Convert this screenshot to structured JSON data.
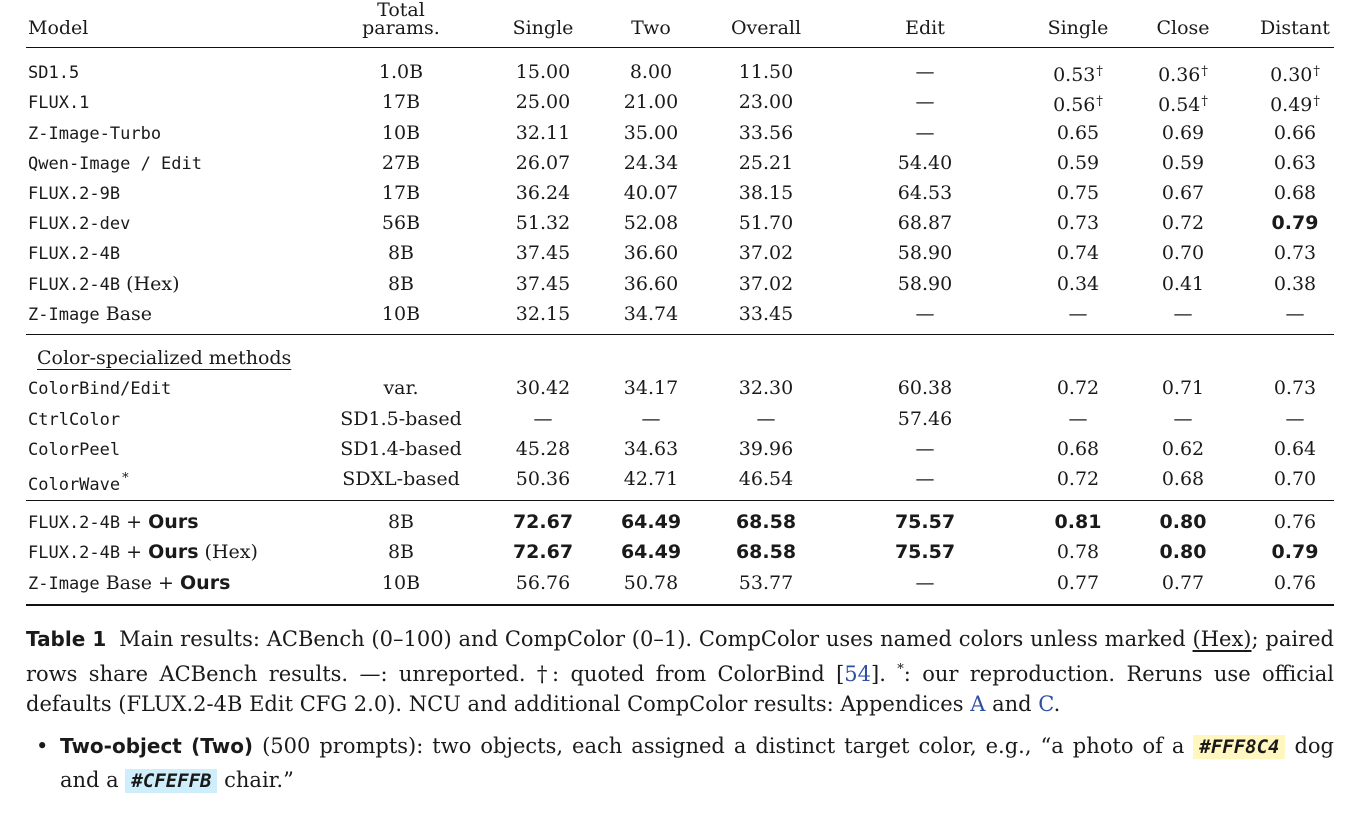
{
  "table": {
    "headers": {
      "model": "Model",
      "params_line1": "Total",
      "params_line2": "params.",
      "single": "Single",
      "two": "Two",
      "overall": "Overall",
      "edit": "Edit",
      "cc_single": "Single",
      "close": "Close",
      "distant": "Distant"
    },
    "group1": [
      {
        "name": "SD1.5",
        "params": "1.0B",
        "single": "15.00",
        "two": "8.00",
        "overall": "11.50",
        "edit": "—",
        "cc_single": "0.53",
        "close": "0.36",
        "distant": "0.30",
        "dagger": "†"
      },
      {
        "name": "FLUX.1",
        "params": "17B",
        "single": "25.00",
        "two": "21.00",
        "overall": "23.00",
        "edit": "—",
        "cc_single": "0.56",
        "close": "0.54",
        "distant": "0.49",
        "dagger": "†"
      },
      {
        "name": "Z-Image-Turbo",
        "params": "10B",
        "single": "32.11",
        "two": "35.00",
        "overall": "33.56",
        "edit": "—",
        "cc_single": "0.65",
        "close": "0.69",
        "distant": "0.66"
      },
      {
        "name": "Qwen-Image / Edit",
        "params": "27B",
        "single": "26.07",
        "two": "24.34",
        "overall": "25.21",
        "edit": "54.40",
        "cc_single": "0.59",
        "close": "0.59",
        "distant": "0.63"
      },
      {
        "name": "FLUX.2-9B",
        "params": "17B",
        "single": "36.24",
        "two": "40.07",
        "overall": "38.15",
        "edit": "64.53",
        "cc_single": "0.75",
        "close": "0.67",
        "distant": "0.68"
      },
      {
        "name": "FLUX.2-dev",
        "params": "56B",
        "single": "51.32",
        "two": "52.08",
        "overall": "51.70",
        "edit": "68.87",
        "cc_single": "0.73",
        "close": "0.72",
        "distant": "0.79"
      },
      {
        "name": "FLUX.2-4B",
        "params": "8B",
        "single": "37.45",
        "two": "36.60",
        "overall": "37.02",
        "edit": "58.90",
        "cc_single": "0.74",
        "close": "0.70",
        "distant": "0.73"
      },
      {
        "name": "FLUX.2-4B",
        "suffix": "(Hex)",
        "params": "8B",
        "single": "37.45",
        "two": "36.60",
        "overall": "37.02",
        "edit": "58.90",
        "cc_single": "0.34",
        "close": "0.41",
        "distant": "0.38"
      },
      {
        "name": "Z-Image",
        "suffix": "Base",
        "params": "10B",
        "single": "32.15",
        "two": "34.74",
        "overall": "33.45",
        "edit": "—",
        "cc_single": "—",
        "close": "—",
        "distant": "—"
      }
    ],
    "section_label": "Color-specialized methods",
    "group2": [
      {
        "name": "ColorBind/Edit",
        "params": "var.",
        "single": "30.42",
        "two": "34.17",
        "overall": "32.30",
        "edit": "60.38",
        "cc_single": "0.72",
        "close": "0.71",
        "distant": "0.73"
      },
      {
        "name": "CtrlColor",
        "params": "SD1.5-based",
        "single": "—",
        "two": "—",
        "overall": "—",
        "edit": "57.46",
        "cc_single": "—",
        "close": "—",
        "distant": "—"
      },
      {
        "name": "ColorPeel",
        "params": "SD1.4-based",
        "single": "45.28",
        "two": "34.63",
        "overall": "39.96",
        "edit": "—",
        "cc_single": "0.68",
        "close": "0.62",
        "distant": "0.64"
      },
      {
        "name": "ColorWave",
        "star": "*",
        "params": "SDXL-based",
        "single": "50.36",
        "two": "42.71",
        "overall": "46.54",
        "edit": "—",
        "cc_single": "0.72",
        "close": "0.68",
        "distant": "0.70"
      }
    ],
    "group3": [
      {
        "name": "FLUX.2-4B",
        "plus": "+",
        "ours": "Ours",
        "params": "8B",
        "single": "72.67",
        "two": "64.49",
        "overall": "68.58",
        "edit": "75.57",
        "cc_single": "0.81",
        "close": "0.80",
        "distant": "0.76"
      },
      {
        "name": "FLUX.2-4B",
        "plus": "+",
        "ours": "Ours",
        "tail": "(Hex)",
        "params": "8B",
        "single": "72.67",
        "two": "64.49",
        "overall": "68.58",
        "edit": "75.57",
        "cc_single": "0.78",
        "close": "0.80",
        "distant": "0.79"
      },
      {
        "name": "Z-Image",
        "suffix": "Base",
        "plus": "+",
        "ours": "Ours",
        "params": "10B",
        "single": "56.76",
        "two": "50.78",
        "overall": "53.77",
        "edit": "—",
        "cc_single": "0.77",
        "close": "0.77",
        "distant": "0.76"
      }
    ]
  },
  "caption": {
    "label": "Table 1",
    "text1": "Main results: ACBench (0–100) and CompColor (0–1). CompColor uses named colors unless marked",
    "hex": "(Hex)",
    "text2": "; paired rows share ACBench results. —: unreported. †: quoted from ColorBind [",
    "ref": "54",
    "text3": "].",
    "star": "*",
    "text4": ": our reproduction. Reruns use official defaults (FLUX.2-4B Edit CFG 2.0). NCU and additional CompColor results: Appendices",
    "appA": "A",
    "and": "and",
    "appC": "C",
    "end": "."
  },
  "bullet": {
    "title": "Two-object (Two)",
    "text1": "(500 prompts): two objects, each assigned a distinct target color, e.g., “a photo of a",
    "color1": "#FFF8C4",
    "text2": "dog and a",
    "color2": "#CFEFFB",
    "text3": "chair.”"
  },
  "colors": {
    "link": "#2f4fa3",
    "swatch1_bg": "#fff6c0",
    "swatch2_bg": "#cdeefa"
  }
}
